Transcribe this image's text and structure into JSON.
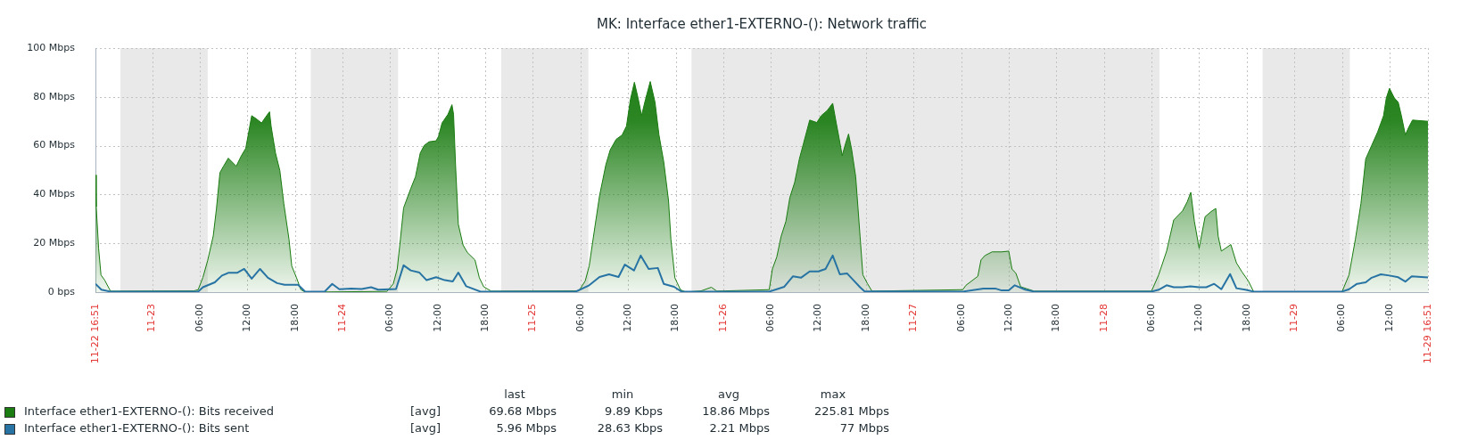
{
  "chart_data": {
    "type": "area",
    "title": "MK: Interface ether1-EXTERNO-(): Network traffic",
    "xlim": [
      "--11-22T16:51",
      "--11-29T16:51"
    ],
    "xticks": [
      {
        "value": "--11-22T16:51",
        "label": "11-22 16:51"
      },
      {
        "value": "--11-23",
        "label": "11-23"
      },
      {
        "value": "--11-23T06:00",
        "label": "06:00"
      },
      {
        "value": "--11-23T12:00",
        "label": "12:00"
      },
      {
        "value": "--11-23T18:00",
        "label": "18:00"
      },
      {
        "value": "--11-24",
        "label": "11-24"
      },
      {
        "value": "--11-24T06:00",
        "label": "06:00"
      },
      {
        "value": "--11-24T12:00",
        "label": "12:00"
      },
      {
        "value": "--11-24T18:00",
        "label": "18:00"
      },
      {
        "value": "--11-25",
        "label": "11-25"
      },
      {
        "value": "--11-25T06:00",
        "label": "06:00"
      },
      {
        "value": "--11-25T12:00",
        "label": "12:00"
      },
      {
        "value": "--11-25T18:00",
        "label": "18:00"
      },
      {
        "value": "--11-26",
        "label": "11-26"
      },
      {
        "value": "--11-26T06:00",
        "label": "06:00"
      },
      {
        "value": "--11-26T12:00",
        "label": "12:00"
      },
      {
        "value": "--11-26T18:00",
        "label": "18:00"
      },
      {
        "value": "--11-27",
        "label": "11-27"
      },
      {
        "value": "--11-27T06:00",
        "label": "06:00"
      },
      {
        "value": "--11-27T12:00",
        "label": "12:00"
      },
      {
        "value": "--11-27T18:00",
        "label": "18:00"
      },
      {
        "value": "--11-28",
        "label": "11-28"
      },
      {
        "value": "--11-28T06:00",
        "label": "06:00"
      },
      {
        "value": "--11-28T12:00",
        "label": "12:00"
      },
      {
        "value": "--11-28T18:00",
        "label": "18:00"
      },
      {
        "value": "--11-29",
        "label": "11-29"
      },
      {
        "value": "--11-29T06:00",
        "label": "06:00"
      },
      {
        "value": "--11-29T12:00",
        "label": "12:00"
      },
      {
        "value": "--11-29T16:51",
        "label": "11-29 16:51"
      }
    ],
    "ylim": [
      0,
      100
    ],
    "yticks": [
      {
        "value": 0,
        "label": "0 bps"
      },
      {
        "value": 20,
        "label": "20 Mbps"
      },
      {
        "value": 40,
        "label": "40 Mbps"
      },
      {
        "value": 60,
        "label": "60 Mbps"
      },
      {
        "value": 80,
        "label": "80 Mbps"
      },
      {
        "value": 100,
        "label": "100 Mbps"
      }
    ],
    "grid": true,
    "legend": "bottom",
    "bands": [
      {
        "axis": "x",
        "from": "--11-22T20:00",
        "to": "--11-23T07:00",
        "color": "#e9e9e9"
      },
      {
        "axis": "x",
        "from": "--11-23T20:00",
        "to": "--11-24T07:00",
        "color": "#e9e9e9"
      },
      {
        "axis": "x",
        "from": "--11-24T20:00",
        "to": "--11-25T07:00",
        "color": "#e9e9e9"
      },
      {
        "axis": "x",
        "from": "--11-25T20:00",
        "to": "--11-28T07:00",
        "color": "#e9e9e9"
      },
      {
        "axis": "x",
        "from": "--11-28T20:00",
        "to": "--11-29T07:00",
        "color": "#e9e9e9"
      }
    ],
    "annotations": [
      "last",
      "min",
      "avg",
      "max",
      "[avg]",
      "69.68 Mbps",
      "9.89 Kbps",
      "18.86 Mbps",
      "225.81 Mbps",
      "[avg]",
      "5.96 Mbps",
      "28.63 Kbps",
      "2.21 Mbps",
      "77 Mbps"
    ],
    "series": [
      {
        "name": "Interface ether1-EXTERNO-(): Bits received",
        "color": "#1a7c11",
        "x": [
          "--11-22T16:51",
          "--11-22T16:57",
          "--11-22T17:15",
          "--11-22T17:33",
          "--11-22T18:00",
          "--11-22T18:45",
          "--11-23T05:15",
          "--11-23T05:48",
          "--11-23T06:24",
          "--11-23T07:00",
          "--11-23T07:42",
          "--11-23T08:06",
          "--11-23T08:33",
          "--11-23T09:00",
          "--11-23T09:36",
          "--11-23T10:36",
          "--11-23T11:15",
          "--11-23T11:48",
          "--11-23T12:33",
          "--11-23T13:06",
          "--11-23T13:48",
          "--11-23T14:18",
          "--11-23T14:48",
          "--11-23T15:00",
          "--11-23T15:33",
          "--11-23T16:06",
          "--11-23T16:36",
          "--11-23T17:15",
          "--11-23T17:36",
          "--11-23T18:12",
          "--11-23T18:45",
          "--11-23T19:18",
          "--11-24T05:36",
          "--11-24T06:24",
          "--11-24T06:54",
          "--11-24T07:18",
          "--11-24T07:42",
          "--11-24T08:03",
          "--11-24T08:36",
          "--11-24T09:12",
          "--11-24T09:48",
          "--11-24T10:18",
          "--11-24T10:54",
          "--11-24T11:48",
          "--11-24T12:06",
          "--11-24T12:33",
          "--11-24T13:18",
          "--11-24T13:48",
          "--11-24T14:00",
          "--11-24T14:15",
          "--11-24T14:36",
          "--11-24T15:12",
          "--11-24T15:45",
          "--11-24T16:42",
          "--11-24T17:15",
          "--11-24T17:48",
          "--11-24T18:45",
          "--11-25T05:48",
          "--11-25T06:36",
          "--11-25T07:06",
          "--11-25T07:42",
          "--11-25T08:24",
          "--11-25T09:12",
          "--11-25T09:45",
          "--11-25T10:30",
          "--11-25T11:15",
          "--11-25T11:48",
          "--11-25T12:18",
          "--11-25T12:48",
          "--11-25T13:18",
          "--11-25T13:42",
          "--11-25T14:12",
          "--11-25T14:48",
          "--11-25T15:24",
          "--11-25T15:54",
          "--11-25T16:30",
          "--11-25T17:06",
          "--11-25T17:24",
          "--11-25T17:54",
          "--11-25T18:36",
          "--11-25T19:18",
          "--11-25T21:12",
          "--11-25T22:30",
          "--11-25T23:12",
          "--11-26T05:48",
          "--11-26T06:12",
          "--11-26T06:45",
          "--11-26T07:18",
          "--11-26T07:54",
          "--11-26T08:24",
          "--11-26T09:00",
          "--11-26T09:36",
          "--11-26T10:06",
          "--11-26T10:54",
          "--11-26T11:48",
          "--11-26T12:21",
          "--11-26T13:06",
          "--11-26T13:48",
          "--11-26T14:15",
          "--11-26T14:36",
          "--11-26T15:00",
          "--11-26T15:24",
          "--11-26T15:48",
          "--11-26T16:12",
          "--11-26T16:42",
          "--11-26T17:15",
          "--11-26T17:36",
          "--11-26T18:12",
          "--11-26T18:45",
          "--11-27T06:12",
          "--11-27T06:36",
          "--11-27T08:06",
          "--11-27T08:30",
          "--11-27T09:00",
          "--11-27T09:54",
          "--11-27T11:06",
          "--11-27T12:00",
          "--11-27T12:24",
          "--11-27T12:54",
          "--11-27T13:30",
          "--11-27T15:12",
          "--11-28T06:00",
          "--11-28T06:54",
          "--11-28T07:54",
          "--11-28T08:48",
          "--11-28T09:54",
          "--11-28T10:30",
          "--11-28T10:57",
          "--11-28T11:24",
          "--11-28T12:00",
          "--11-28T12:45",
          "--11-28T13:30",
          "--11-28T14:06",
          "--11-28T14:24",
          "--11-28T14:48",
          "--11-28T16:00",
          "--11-28T16:42",
          "--11-28T17:24",
          "--11-28T18:12",
          "--11-28T18:54",
          "--11-29T06:00",
          "--11-29T06:54",
          "--11-29T07:42",
          "--11-29T08:24",
          "--11-29T09:00",
          "--11-29T09:45",
          "--11-29T10:30",
          "--11-29T11:15",
          "--11-29T11:36",
          "--11-29T12:00",
          "--11-29T12:36",
          "--11-29T13:06",
          "--11-29T13:30",
          "--11-29T14:00",
          "--11-29T14:24",
          "--11-29T14:54",
          "--11-29T16:51"
        ],
        "values": [
          48,
          35,
          18,
          7,
          5,
          0.4,
          0.5,
          1,
          6,
          13,
          23,
          34,
          49,
          51.6,
          54.9,
          51.6,
          55.9,
          58.9,
          72.3,
          71.1,
          69.3,
          71.7,
          73.9,
          68,
          57,
          49.8,
          36.3,
          21.7,
          10.7,
          5.9,
          1,
          0,
          0.3,
          3.4,
          9.5,
          21.7,
          34.5,
          37.6,
          42.4,
          47.3,
          57,
          60.1,
          61.6,
          62,
          63.8,
          69.3,
          72.9,
          76.8,
          72.9,
          52.2,
          27.8,
          19.3,
          16.2,
          13.2,
          5.9,
          2.2,
          0.4,
          0.5,
          4.6,
          10.7,
          24.1,
          39.4,
          52.2,
          58.3,
          62.6,
          64.4,
          68,
          79,
          86,
          79,
          72.3,
          79,
          86.3,
          77.8,
          64.4,
          53.4,
          37.6,
          21.7,
          5.9,
          1,
          0,
          0.5,
          2,
          0.4,
          1,
          9.5,
          14.4,
          22.9,
          29,
          38.8,
          44.9,
          54.6,
          60.7,
          70.5,
          69.5,
          72.3,
          74.4,
          77.4,
          69.3,
          63.2,
          55.9,
          60.7,
          64.8,
          58.3,
          47.3,
          22.9,
          7.1,
          3.4,
          0.4,
          1,
          2.8,
          6.5,
          13.2,
          15,
          16.5,
          16.5,
          16.8,
          9.5,
          7.7,
          2.2,
          0.4,
          0.4,
          7.1,
          16.8,
          29.6,
          33.3,
          37,
          40.9,
          29,
          18,
          30.9,
          33,
          34.3,
          22.9,
          16.8,
          19.5,
          12,
          8.3,
          4.6,
          0,
          0,
          7.1,
          21.7,
          36.3,
          54.6,
          60.1,
          65.6,
          72.3,
          79.6,
          83.5,
          79.6,
          77.8,
          72.3,
          64.4,
          67.4,
          70.5,
          70
        ]
      },
      {
        "name": "Interface ether1-EXTERNO-(): Bits sent",
        "color": "#2774a4",
        "type": "line",
        "x": [
          "--11-22T16:51",
          "--11-22T17:36",
          "--11-22T18:45",
          "--11-23T05:48",
          "--11-23T06:24",
          "--11-23T07:54",
          "--11-23T08:48",
          "--11-23T09:36",
          "--11-23T10:42",
          "--11-23T11:36",
          "--11-23T12:33",
          "--11-23T13:36",
          "--11-23T14:36",
          "--11-23T15:45",
          "--11-23T16:42",
          "--11-23T18:24",
          "--11-23T19:18",
          "--11-23T21:45",
          "--11-23T22:42",
          "--11-23T23:36",
          "--11-24T01:06",
          "--11-24T02:24",
          "--11-24T03:36",
          "--11-24T04:30",
          "--11-24T06:45",
          "--11-24T07:42",
          "--11-24T08:36",
          "--11-24T09:42",
          "--11-24T10:36",
          "--11-24T11:48",
          "--11-24T12:54",
          "--11-24T13:54",
          "--11-24T14:36",
          "--11-24T15:36",
          "--11-24T17:24",
          "--11-25T05:24",
          "--11-25T07:06",
          "--11-25T08:24",
          "--11-25T09:36",
          "--11-25T10:48",
          "--11-25T11:36",
          "--11-25T12:45",
          "--11-25T13:36",
          "--11-25T14:36",
          "--11-25T15:45",
          "--11-25T16:30",
          "--11-25T17:48",
          "--11-25T18:45",
          "--11-26T05:48",
          "--11-26T07:42",
          "--11-26T08:48",
          "--11-26T09:48",
          "--11-26T10:54",
          "--11-26T12:00",
          "--11-26T12:54",
          "--11-26T13:48",
          "--11-26T14:42",
          "--11-26T15:36",
          "--11-26T16:30",
          "--11-26T17:15",
          "--11-26T17:48",
          "--11-27T06:12",
          "--11-27T08:48",
          "--11-27T10:18",
          "--11-27T11:06",
          "--11-27T12:00",
          "--11-27T12:45",
          "--11-27T14:06",
          "--11-27T15:12",
          "--11-28T06:00",
          "--11-28T06:54",
          "--11-28T07:54",
          "--11-28T08:48",
          "--11-28T09:54",
          "--11-28T10:54",
          "--11-28T12:00",
          "--11-28T12:54",
          "--11-28T13:54",
          "--11-28T14:48",
          "--11-28T15:54",
          "--11-28T16:42",
          "--11-28T17:48",
          "--11-28T18:54",
          "--11-29T06:00",
          "--11-29T06:54",
          "--11-29T07:54",
          "--11-29T09:00",
          "--11-29T09:45",
          "--11-29T10:54",
          "--11-29T12:00",
          "--11-29T13:06",
          "--11-29T14:00",
          "--11-29T14:48",
          "--11-29T16:51"
        ],
        "values": [
          3.4,
          1,
          0.2,
          0.2,
          2,
          4,
          6.8,
          7.9,
          7.9,
          9.5,
          5.5,
          9.5,
          5.9,
          3.7,
          3,
          3,
          0.2,
          0.2,
          3.4,
          1.2,
          1.5,
          1.3,
          2,
          1,
          1.3,
          11,
          8.9,
          8,
          4.9,
          6.1,
          4.9,
          4.4,
          8,
          2.4,
          0.2,
          0.2,
          2.8,
          6.2,
          7.3,
          6.2,
          11.3,
          8.9,
          15,
          9.5,
          9.9,
          3.4,
          2.2,
          0.2,
          0.2,
          2.2,
          6.5,
          5.9,
          8.5,
          8.5,
          9.5,
          15,
          7.3,
          7.7,
          4.6,
          2,
          0.4,
          0.2,
          1.5,
          1.5,
          0.7,
          0.7,
          2.8,
          1,
          0.2,
          0.2,
          1,
          2.8,
          2,
          2,
          2.4,
          2,
          2,
          3.4,
          1.2,
          7.4,
          1.6,
          1,
          0.2,
          0.2,
          1.2,
          3.4,
          4,
          5.9,
          7.3,
          6.8,
          6.1,
          4.3,
          6.5,
          6
        ]
      }
    ]
  }
}
